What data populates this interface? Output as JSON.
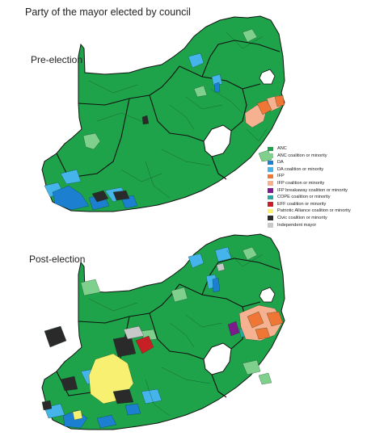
{
  "title": "Party of the mayor elected by council",
  "panels": {
    "pre": {
      "label": "Pre-election"
    },
    "post": {
      "label": "Post-election"
    }
  },
  "legend": [
    {
      "label": "ANC",
      "color": "#1fa34a"
    },
    {
      "label": "ANC coalition or minority",
      "color": "#7fd08d"
    },
    {
      "label": "DA",
      "color": "#1c7fd0"
    },
    {
      "label": "DA coalition or minority",
      "color": "#45b4ea"
    },
    {
      "label": "IFP",
      "color": "#f07636"
    },
    {
      "label": "IFP coalition or minority",
      "color": "#f5b190"
    },
    {
      "label": "IFP breakaway coalition or minority",
      "color": "#7d1a8c"
    },
    {
      "label": "COPE coalition or minority",
      "color": "#2aa7a0"
    },
    {
      "label": "EFF coalition or minority",
      "color": "#c81e26"
    },
    {
      "label": "Patriotic Alliance coalition or minority",
      "color": "#f7f070"
    },
    {
      "label": "Civic coalition or minority",
      "color": "#2a2a2a"
    },
    {
      "label": "Independent mayor",
      "color": "#c8c8c8"
    }
  ]
}
